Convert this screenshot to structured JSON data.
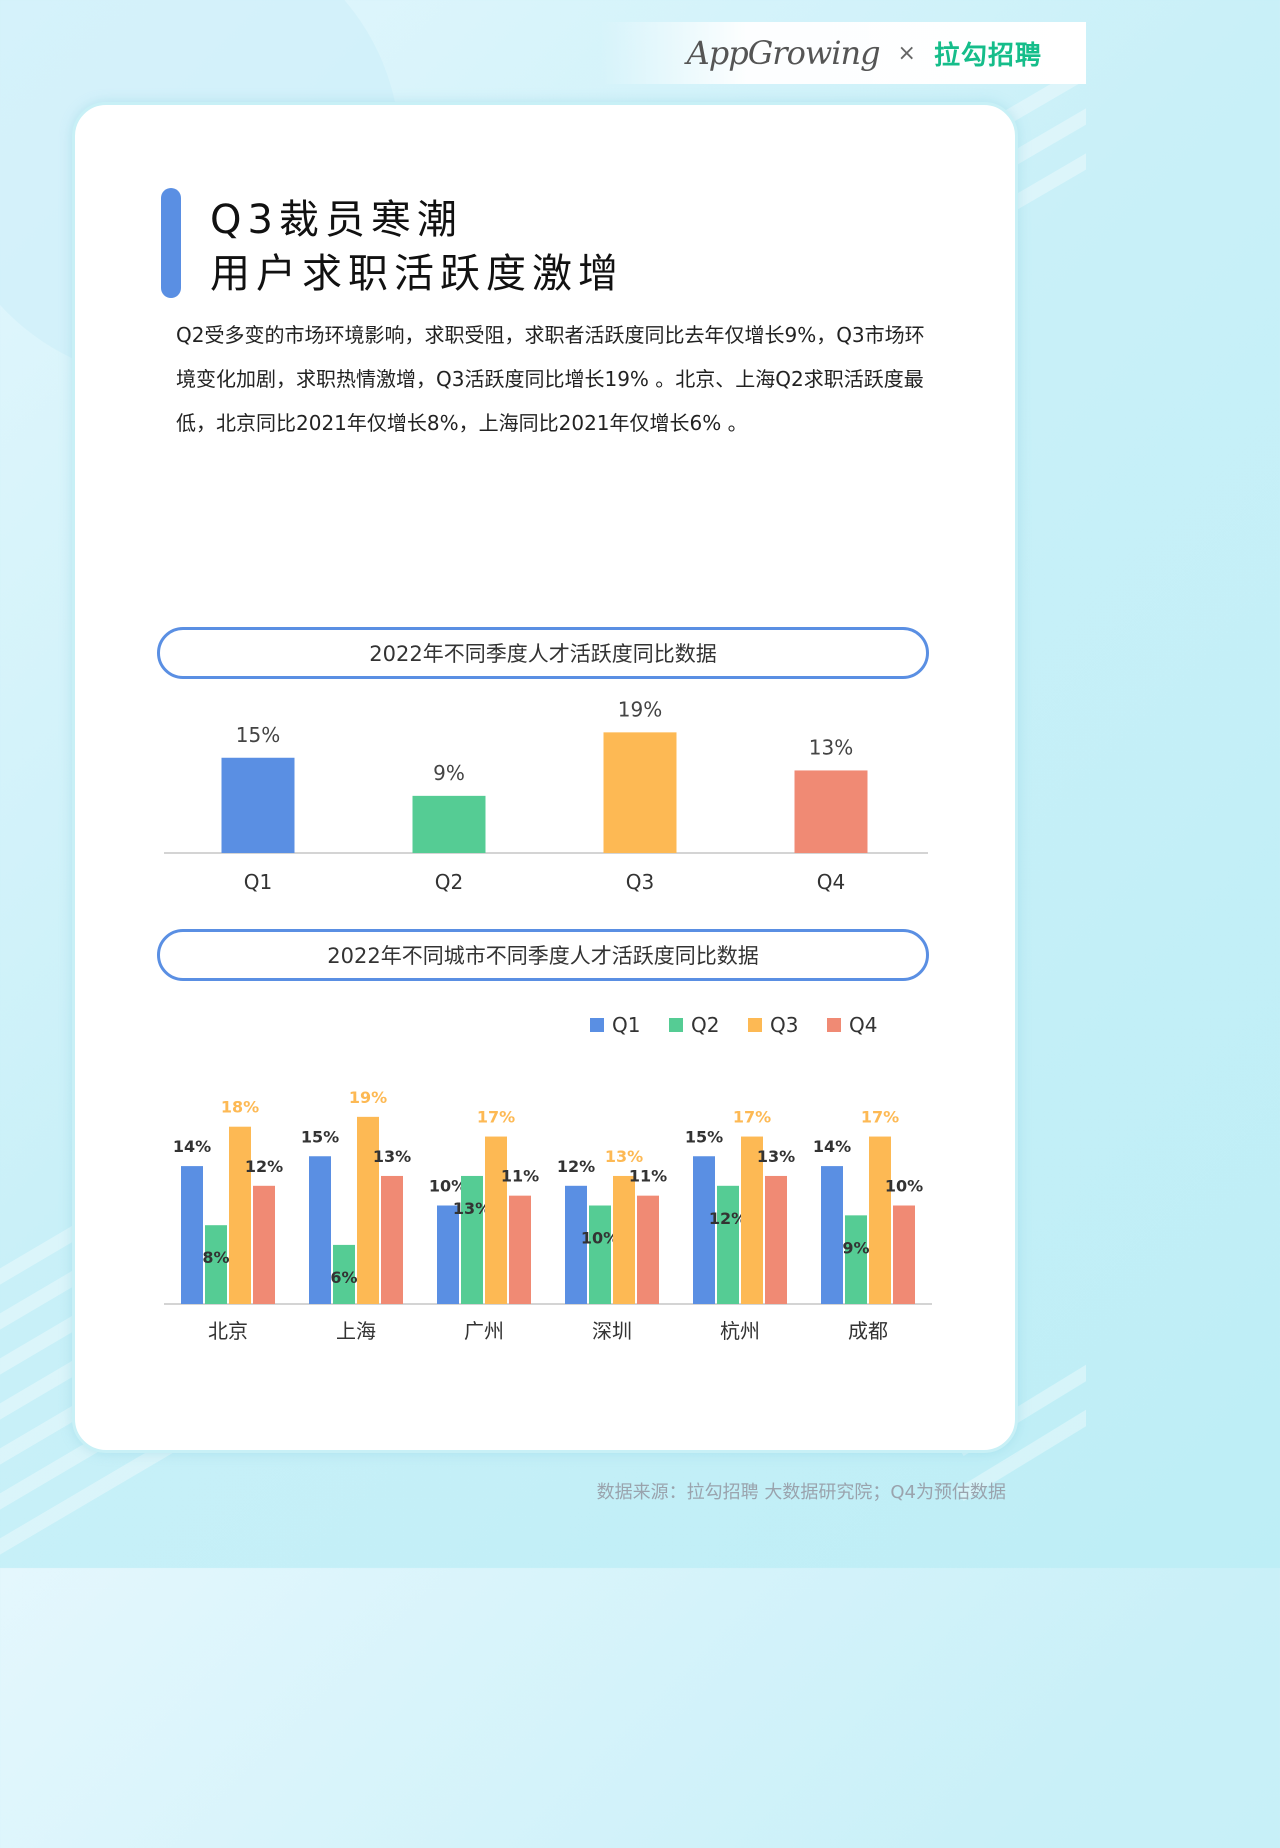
{
  "brand": {
    "left": "AppGrowing",
    "separator": "×",
    "right": "拉勾招聘"
  },
  "title": {
    "line1": "Q3裁员寒潮",
    "line2": "用户求职活跃度激增"
  },
  "intro": "Q2受多变的市场环境影响，求职受阻，求职者活跃度同比去年仅增长9%，Q3市场环境变化加剧，求职热情激增，Q3活跃度同比增长19% 。北京、上海Q2求职活跃度最低，北京同比2021年仅增长8%，上海同比2021年仅增长6% 。",
  "colors": {
    "Q1": "#5a8fe3",
    "Q2": "#55cc94",
    "Q3": "#fdb954",
    "Q4": "#f08a74",
    "accent": "#5a8fe3"
  },
  "chart_data": [
    {
      "type": "bar",
      "title": "2022年不同季度人才活跃度同比数据",
      "categories": [
        "Q1",
        "Q2",
        "Q3",
        "Q4"
      ],
      "values": [
        15,
        9,
        19,
        13
      ],
      "labels": [
        "15%",
        "9%",
        "19%",
        "13%"
      ],
      "unit": "%",
      "ylim": [
        0,
        20
      ],
      "grid": false
    },
    {
      "type": "bar",
      "title": "2022年不同城市不同季度人才活跃度同比数据",
      "categories": [
        "北京",
        "上海",
        "广州",
        "深圳",
        "杭州",
        "成都"
      ],
      "series": [
        {
          "name": "Q1",
          "values": [
            14,
            15,
            10,
            12,
            15,
            14
          ],
          "labels": [
            "14%",
            "15%",
            "10%",
            "12%",
            "15%",
            "14%"
          ]
        },
        {
          "name": "Q2",
          "values": [
            8,
            6,
            13,
            10,
            12,
            9
          ],
          "labels": [
            "8%",
            "6%",
            "13%",
            "10%",
            "12%",
            "9%"
          ]
        },
        {
          "name": "Q3",
          "values": [
            18,
            19,
            17,
            13,
            17,
            17
          ],
          "labels": [
            "18%",
            "19%",
            "17%",
            "13%",
            "17%",
            "17%"
          ]
        },
        {
          "name": "Q4",
          "values": [
            12,
            13,
            11,
            11,
            13,
            10
          ],
          "labels": [
            "12%",
            "13%",
            "11%",
            "11%",
            "13%",
            "10%"
          ]
        }
      ],
      "legend": "top-right",
      "unit": "%",
      "grid": false
    }
  ],
  "source": "数据来源：拉勾招聘 大数据研究院；Q4为预估数据"
}
